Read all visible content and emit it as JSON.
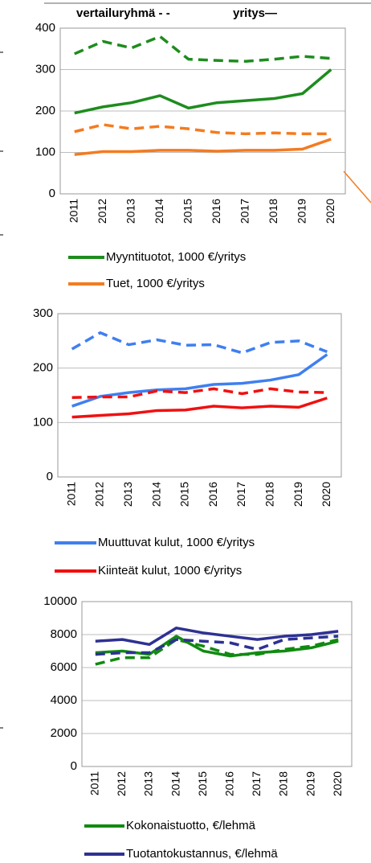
{
  "legend_header": [
    "vertailuryhmä - -",
    "yritys—"
  ],
  "chart_data": [
    {
      "type": "line",
      "categories": [
        "2011",
        "2012",
        "2013",
        "2014",
        "2015",
        "2016",
        "2017",
        "2018",
        "2019",
        "2020"
      ],
      "ylim": [
        0,
        400
      ],
      "yticks": [
        0,
        100,
        200,
        300,
        400
      ],
      "series": [
        {
          "name": "Myyntituotot, 1000 €/yritys",
          "color": "#1e8c1e",
          "values": [
            195,
            210,
            220,
            237,
            207,
            220,
            225,
            230,
            242,
            300
          ],
          "comparison_values": [
            338,
            368,
            352,
            380,
            325,
            322,
            320,
            325,
            332,
            327
          ]
        },
        {
          "name": "Tuet, 1000 €/yritys",
          "color": "#f47b20",
          "values": [
            95,
            102,
            102,
            105,
            105,
            103,
            105,
            105,
            108,
            132
          ],
          "comparison_values": [
            150,
            167,
            157,
            163,
            157,
            148,
            145,
            147,
            145,
            145
          ]
        }
      ]
    },
    {
      "type": "line",
      "categories": [
        "2011",
        "2012",
        "2013",
        "2014",
        "2015",
        "2016",
        "2017",
        "2018",
        "2019",
        "2020"
      ],
      "ylim": [
        0,
        300
      ],
      "yticks": [
        0,
        100,
        200,
        300
      ],
      "series": [
        {
          "name": "Muuttuvat kulut, 1000 €/yritys",
          "color": "#3f7ff0",
          "values": [
            130,
            148,
            155,
            160,
            162,
            170,
            172,
            178,
            188,
            225
          ],
          "comparison_values": [
            235,
            265,
            243,
            252,
            242,
            243,
            228,
            247,
            250,
            230
          ]
        },
        {
          "name": "Kiinteät kulut, 1000 €/yritys",
          "color": "#f01010",
          "values": [
            110,
            113,
            116,
            122,
            123,
            130,
            127,
            130,
            128,
            145
          ],
          "comparison_values": [
            146,
            147,
            147,
            158,
            155,
            162,
            153,
            162,
            156,
            155
          ]
        }
      ]
    },
    {
      "type": "line",
      "categories": [
        "2011",
        "2012",
        "2013",
        "2014",
        "2015",
        "2016",
        "2017",
        "2018",
        "2019",
        "2020"
      ],
      "ylim": [
        0,
        10000
      ],
      "yticks": [
        0,
        2000,
        4000,
        6000,
        8000,
        10000
      ],
      "series": [
        {
          "name": "Kokonaistuotto, €/lehmä",
          "color": "#118a11",
          "values": [
            6900,
            7000,
            6800,
            7900,
            7000,
            6700,
            6900,
            7000,
            7200,
            7600
          ],
          "comparison_values": [
            6200,
            6600,
            6600,
            7700,
            7300,
            6800,
            6800,
            7100,
            7300,
            7700
          ]
        },
        {
          "name": "Tuotantokustannus, €/lehmä",
          "color": "#2e3192",
          "values": [
            7600,
            7700,
            7400,
            8400,
            8100,
            7900,
            7700,
            7900,
            8000,
            8200
          ],
          "comparison_values": [
            6800,
            6900,
            6900,
            7700,
            7600,
            7500,
            7100,
            7700,
            7800,
            7900
          ]
        }
      ]
    }
  ]
}
